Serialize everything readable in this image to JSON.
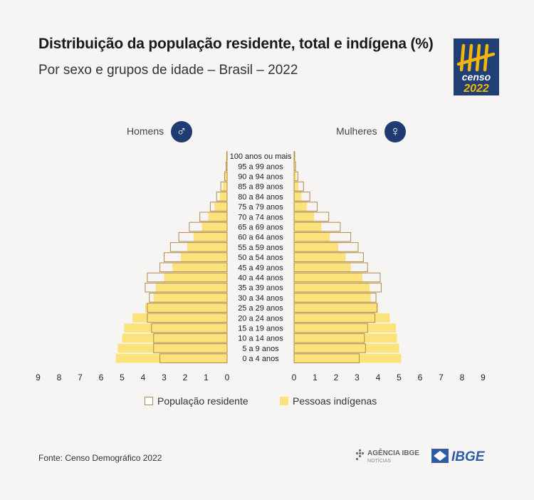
{
  "title": "Distribuição da população residente, total e indígena (%)",
  "subtitle": "Por sexo e grupos de idade – Brasil – 2022",
  "logo": {
    "line1": "censo",
    "line2": "2022"
  },
  "source": "Fonte: Censo Demográfico 2022",
  "footer_logos": {
    "agencia_line1": "AGÊNCIA IBGE",
    "agencia_line2": "NOTÍCIAS",
    "ibge": "IBGE"
  },
  "colors": {
    "total_stroke": "#b38a4a",
    "indigenous_fill": "#fbe27a",
    "brand_blue": "#1e3c72"
  },
  "icons": {
    "men": "male-symbol-icon",
    "women": "female-symbol-icon"
  },
  "chart_data": {
    "type": "bar",
    "orientation": "horizontal-pyramid",
    "title": "Distribuição da população residente, total e indígena (%)",
    "subtitle": "Por sexo e grupos de idade – Brasil – 2022",
    "left_label": "Homens",
    "right_label": "Mulheres",
    "categories": [
      "100 anos ou mais",
      "95 a 99 anos",
      "90 a 94 anos",
      "85 a 89 anos",
      "80 a 84 anos",
      "75 a 79 anos",
      "70 a 74 anos",
      "65 a 69 anos",
      "60 a 64 anos",
      "55 a 59 anos",
      "50 a 54 anos",
      "45 a 49 anos",
      "40 a 44 anos",
      "35 a 39 anos",
      "30 a 34 anos",
      "25 a 29 anos",
      "20 a 24 anos",
      "15 a 19 anos",
      "10 a 14 anos",
      "5 a 9 anos",
      "0 a 4 anos"
    ],
    "legend": [
      "População residente",
      "Pessoas indígenas"
    ],
    "xlim": [
      0,
      9
    ],
    "ticks": [
      0,
      1,
      2,
      3,
      4,
      5,
      6,
      7,
      8,
      9
    ],
    "grid": false,
    "series": [
      {
        "name": "População residente",
        "sex": "Homens",
        "values": [
          0.02,
          0.05,
          0.12,
          0.3,
          0.5,
          0.8,
          1.3,
          1.8,
          2.3,
          2.7,
          3.0,
          3.2,
          3.8,
          3.9,
          3.7,
          3.8,
          3.8,
          3.6,
          3.5,
          3.5,
          3.2
        ]
      },
      {
        "name": "População residente",
        "sex": "Mulheres",
        "values": [
          0.03,
          0.07,
          0.18,
          0.45,
          0.75,
          1.1,
          1.65,
          2.2,
          2.7,
          3.05,
          3.3,
          3.5,
          4.1,
          4.15,
          3.9,
          3.95,
          3.85,
          3.5,
          3.35,
          3.4,
          3.1
        ]
      },
      {
        "name": "Pessoas indígenas",
        "sex": "Homens",
        "values": [
          0.03,
          0.05,
          0.1,
          0.2,
          0.35,
          0.6,
          0.9,
          1.2,
          1.6,
          1.9,
          2.2,
          2.6,
          3.0,
          3.4,
          3.5,
          3.9,
          4.5,
          4.9,
          5.0,
          5.2,
          5.3
        ]
      },
      {
        "name": "Pessoas indígenas",
        "sex": "Mulheres",
        "values": [
          0.03,
          0.05,
          0.1,
          0.2,
          0.35,
          0.6,
          0.95,
          1.3,
          1.7,
          2.1,
          2.45,
          2.7,
          3.25,
          3.6,
          3.65,
          4.0,
          4.55,
          4.85,
          4.9,
          5.0,
          5.1
        ]
      }
    ]
  }
}
